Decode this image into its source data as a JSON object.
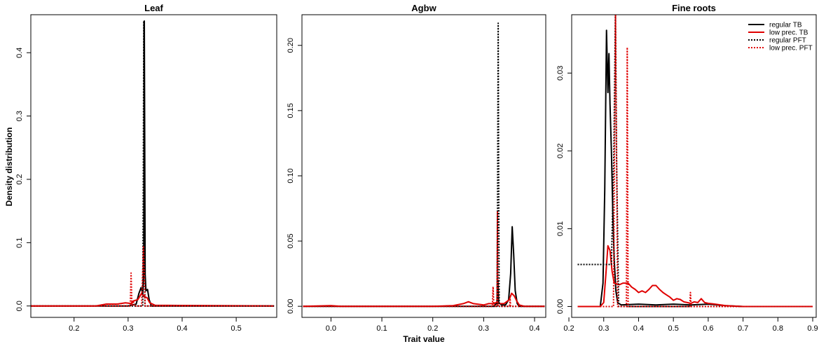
{
  "figure": {
    "y_axis_label": "Density distribution",
    "x_axis_label": "Trait value"
  },
  "colors": {
    "regular": "#000000",
    "low_prec": "#e00000"
  },
  "legend": {
    "placement": "top-right of Fine roots panel",
    "items": [
      {
        "label": "regular TB",
        "color": "#000000",
        "style": "solid"
      },
      {
        "label": "low prec. TB",
        "color": "#e00000",
        "style": "solid"
      },
      {
        "label": "regular PFT",
        "color": "#000000",
        "style": "dotted"
      },
      {
        "label": "low prec. PFT",
        "color": "#e00000",
        "style": "dotted"
      }
    ]
  },
  "chart_data": [
    {
      "type": "line",
      "title": "Leaf",
      "xlim": [
        0.12,
        0.575
      ],
      "ylim": [
        -0.018,
        0.46
      ],
      "xticks": [
        0.2,
        0.3,
        0.4,
        0.5
      ],
      "yticks": [
        0.0,
        0.1,
        0.2,
        0.3,
        0.4
      ],
      "series": [
        {
          "name": "regular TB",
          "color": "#000000",
          "style": "solid",
          "points": [
            [
              0.12,
              0
            ],
            [
              0.3,
              0
            ],
            [
              0.315,
              0.003
            ],
            [
              0.32,
              0.02
            ],
            [
              0.324,
              0.029
            ],
            [
              0.327,
              0.02
            ],
            [
              0.329,
              0.05
            ],
            [
              0.33,
              0.45
            ],
            [
              0.3315,
              0.05
            ],
            [
              0.333,
              0.024
            ],
            [
              0.336,
              0.026
            ],
            [
              0.339,
              0.01
            ],
            [
              0.343,
              0
            ],
            [
              0.57,
              0
            ]
          ]
        },
        {
          "name": "low prec. TB",
          "color": "#e00000",
          "style": "solid",
          "points": [
            [
              0.12,
              0
            ],
            [
              0.24,
              0
            ],
            [
              0.26,
              0.003
            ],
            [
              0.28,
              0.003
            ],
            [
              0.295,
              0.005
            ],
            [
              0.305,
              0.004
            ],
            [
              0.31,
              0.008
            ],
            [
              0.318,
              0.01
            ],
            [
              0.325,
              0.02
            ],
            [
              0.33,
              0.015
            ],
            [
              0.335,
              0.013
            ],
            [
              0.34,
              0.005
            ],
            [
              0.35,
              0.001
            ],
            [
              0.57,
              0
            ]
          ]
        },
        {
          "name": "regular PFT",
          "color": "#000000",
          "style": "dotted",
          "points": [
            [
              0.12,
              0
            ],
            [
              0.327,
              0
            ],
            [
              0.328,
              0.2
            ],
            [
              0.329,
              0.45
            ],
            [
              0.33,
              0.2
            ],
            [
              0.331,
              0
            ],
            [
              0.57,
              0
            ]
          ]
        },
        {
          "name": "low prec. PFT",
          "color": "#e00000",
          "style": "dotted",
          "points": [
            [
              0.12,
              0
            ],
            [
              0.304,
              0
            ],
            [
              0.3055,
              0.052
            ],
            [
              0.307,
              0
            ],
            [
              0.3095,
              0.008
            ],
            [
              0.312,
              0
            ],
            [
              0.325,
              0
            ],
            [
              0.3285,
              0.095
            ],
            [
              0.3315,
              0
            ],
            [
              0.57,
              0
            ]
          ]
        }
      ]
    },
    {
      "type": "line",
      "title": "Agbw",
      "xlim": [
        -0.057,
        0.422
      ],
      "ylim": [
        -0.0085,
        0.2235
      ],
      "xticks": [
        0.0,
        0.1,
        0.2,
        0.3,
        0.4
      ],
      "yticks": [
        0.0,
        0.05,
        0.1,
        0.15,
        0.2
      ],
      "series": [
        {
          "name": "regular TB",
          "color": "#000000",
          "style": "solid",
          "points": [
            [
              -0.055,
              0
            ],
            [
              0.32,
              0
            ],
            [
              0.326,
              0.003
            ],
            [
              0.328,
              0.02
            ],
            [
              0.3295,
              0.003
            ],
            [
              0.335,
              0.001
            ],
            [
              0.343,
              0.001
            ],
            [
              0.349,
              0.005
            ],
            [
              0.353,
              0.025
            ],
            [
              0.356,
              0.061
            ],
            [
              0.359,
              0.04
            ],
            [
              0.362,
              0.012
            ],
            [
              0.366,
              0.002
            ],
            [
              0.37,
              0
            ],
            [
              0.42,
              0
            ]
          ]
        },
        {
          "name": "low prec. TB",
          "color": "#e00000",
          "style": "solid",
          "points": [
            [
              -0.055,
              0
            ],
            [
              0.0,
              0.0005
            ],
            [
              0.02,
              0
            ],
            [
              0.1,
              0
            ],
            [
              0.2,
              0
            ],
            [
              0.24,
              0.0005
            ],
            [
              0.26,
              0.002
            ],
            [
              0.27,
              0.0035
            ],
            [
              0.28,
              0.002
            ],
            [
              0.3,
              0.001
            ],
            [
              0.31,
              0.002
            ],
            [
              0.32,
              0.002
            ],
            [
              0.325,
              0.003
            ],
            [
              0.33,
              0.002
            ],
            [
              0.34,
              0.002
            ],
            [
              0.35,
              0.005
            ],
            [
              0.355,
              0.01
            ],
            [
              0.36,
              0.008
            ],
            [
              0.365,
              0.004
            ],
            [
              0.37,
              0.001
            ],
            [
              0.38,
              0
            ],
            [
              0.42,
              0
            ]
          ]
        },
        {
          "name": "regular PFT",
          "color": "#000000",
          "style": "dotted",
          "points": [
            [
              -0.055,
              0
            ],
            [
              0.3265,
              0
            ],
            [
              0.3275,
              0.1
            ],
            [
              0.3285,
              0.217
            ],
            [
              0.3295,
              0.1
            ],
            [
              0.3305,
              0
            ],
            [
              0.42,
              0
            ]
          ]
        },
        {
          "name": "low prec. PFT",
          "color": "#e00000",
          "style": "dotted",
          "points": [
            [
              -0.055,
              0
            ],
            [
              0.317,
              0
            ],
            [
              0.3185,
              0.015
            ],
            [
              0.32,
              0
            ],
            [
              0.326,
              0
            ],
            [
              0.327,
              0.073
            ],
            [
              0.328,
              0
            ],
            [
              0.351,
              0
            ],
            [
              0.352,
              0.006
            ],
            [
              0.353,
              0
            ],
            [
              0.42,
              0
            ]
          ]
        }
      ]
    },
    {
      "type": "line",
      "title": "Fine roots",
      "xlim": [
        0.208,
        0.91
      ],
      "ylim": [
        -0.0014,
        0.0375
      ],
      "xticks": [
        0.2,
        0.3,
        0.4,
        0.5,
        0.6,
        0.7,
        0.8,
        0.9
      ],
      "yticks": [
        0.0,
        0.01,
        0.02,
        0.03
      ],
      "series": [
        {
          "name": "regular TB",
          "color": "#000000",
          "style": "solid",
          "points": [
            [
              0.225,
              0
            ],
            [
              0.29,
              0
            ],
            [
              0.298,
              0.003
            ],
            [
              0.303,
              0.015
            ],
            [
              0.308,
              0.0355
            ],
            [
              0.312,
              0.0275
            ],
            [
              0.315,
              0.0325
            ],
            [
              0.318,
              0.026
            ],
            [
              0.322,
              0.02
            ],
            [
              0.326,
              0.012
            ],
            [
              0.33,
              0.006
            ],
            [
              0.335,
              0.002
            ],
            [
              0.34,
              0.0005
            ],
            [
              0.35,
              0.0002
            ],
            [
              0.4,
              0.0003
            ],
            [
              0.45,
              0.0002
            ],
            [
              0.5,
              0.0003
            ],
            [
              0.55,
              0.0002
            ],
            [
              0.6,
              0.0003
            ],
            [
              0.65,
              0.0001
            ],
            [
              0.7,
              0
            ],
            [
              0.9,
              0
            ]
          ]
        },
        {
          "name": "low prec. TB",
          "color": "#e00000",
          "style": "solid",
          "points": [
            [
              0.225,
              0
            ],
            [
              0.29,
              0
            ],
            [
              0.3,
              0.0005
            ],
            [
              0.306,
              0.004
            ],
            [
              0.312,
              0.0078
            ],
            [
              0.318,
              0.0072
            ],
            [
              0.324,
              0.0045
            ],
            [
              0.33,
              0.003
            ],
            [
              0.345,
              0.0028
            ],
            [
              0.355,
              0.003
            ],
            [
              0.36,
              0.003
            ],
            [
              0.37,
              0.003
            ],
            [
              0.38,
              0.0025
            ],
            [
              0.39,
              0.0022
            ],
            [
              0.4,
              0.0018
            ],
            [
              0.41,
              0.002
            ],
            [
              0.42,
              0.0018
            ],
            [
              0.43,
              0.0022
            ],
            [
              0.44,
              0.0027
            ],
            [
              0.45,
              0.0027
            ],
            [
              0.46,
              0.0022
            ],
            [
              0.47,
              0.0018
            ],
            [
              0.48,
              0.0015
            ],
            [
              0.49,
              0.0012
            ],
            [
              0.5,
              0.0008
            ],
            [
              0.51,
              0.001
            ],
            [
              0.52,
              0.0009
            ],
            [
              0.53,
              0.0006
            ],
            [
              0.54,
              0.0005
            ],
            [
              0.55,
              0.0004
            ],
            [
              0.56,
              0.0006
            ],
            [
              0.57,
              0.0005
            ],
            [
              0.58,
              0.001
            ],
            [
              0.59,
              0.0005
            ],
            [
              0.6,
              0.0004
            ],
            [
              0.62,
              0.0003
            ],
            [
              0.65,
              0.0001
            ],
            [
              0.7,
              0
            ],
            [
              0.9,
              0
            ]
          ]
        },
        {
          "name": "regular PFT",
          "color": "#000000",
          "style": "dotted",
          "points": [
            [
              0.225,
              0.0054
            ],
            [
              0.3,
              0.0054
            ],
            [
              0.322,
              0.0054
            ],
            [
              0.329,
              0.02
            ],
            [
              0.3335,
              0.0375
            ],
            [
              0.3365,
              0.02
            ],
            [
              0.343,
              0
            ],
            [
              0.9,
              0
            ]
          ]
        },
        {
          "name": "low prec. PFT",
          "color": "#e00000",
          "style": "dotted",
          "points": [
            [
              0.225,
              0
            ],
            [
              0.328,
              0
            ],
            [
              0.331,
              0.02
            ],
            [
              0.334,
              0.0375
            ],
            [
              0.337,
              0.02
            ],
            [
              0.34,
              0
            ],
            [
              0.365,
              0
            ],
            [
              0.3675,
              0.0333
            ],
            [
              0.37,
              0
            ],
            [
              0.547,
              0
            ],
            [
              0.549,
              0.0018
            ],
            [
              0.551,
              0
            ],
            [
              0.9,
              0
            ]
          ]
        }
      ]
    }
  ]
}
